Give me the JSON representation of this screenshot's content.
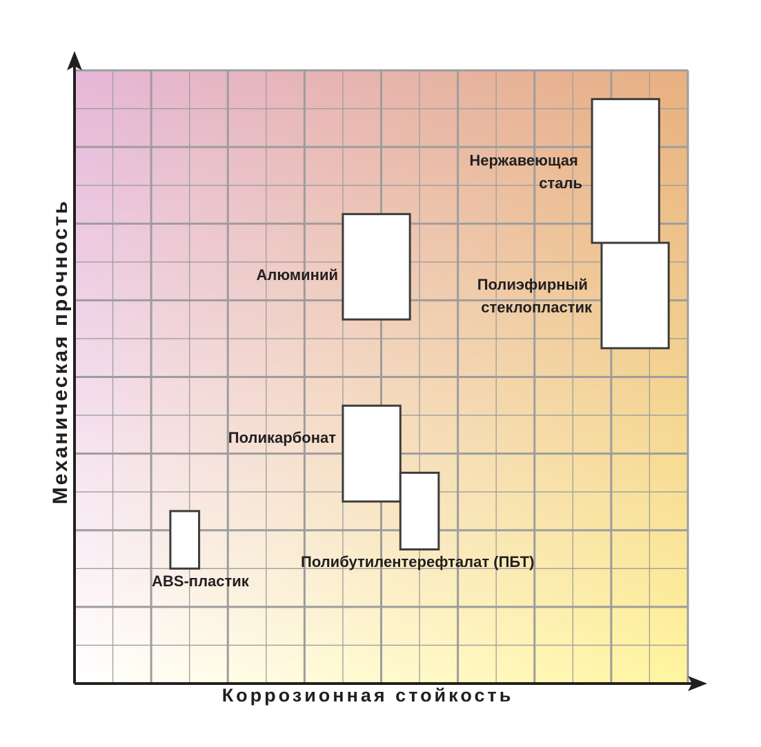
{
  "chart_data": {
    "type": "range-box",
    "xlabel": "Коррозионная стойкость",
    "ylabel": "Механическая прочность",
    "xlim": [
      0,
      16
    ],
    "ylim": [
      0,
      16
    ],
    "grid": true,
    "colors": {
      "bg_top_left": "#e6b7d9",
      "bg_top_right": "#e8b080",
      "bg_bottom_left": "#ffffff",
      "bg_bottom_right": "#fff59e",
      "grid": "#9d9d9d",
      "axis": "#231f20",
      "box_fill": "#ffffff",
      "box_stroke": "#3c3c3c"
    },
    "series": [
      {
        "name": "ABS-пластик",
        "x_range": [
          2.5,
          3.25
        ],
        "y_range": [
          3.0,
          4.5
        ]
      },
      {
        "name": "Поликарбонат",
        "x_range": [
          7.0,
          8.5
        ],
        "y_range": [
          4.75,
          7.25
        ]
      },
      {
        "name": "Полибутилентерефталат (ПБТ)",
        "x_range": [
          8.5,
          9.5
        ],
        "y_range": [
          3.5,
          5.5
        ]
      },
      {
        "name": "Алюминий",
        "x_range": [
          7.0,
          8.75
        ],
        "y_range": [
          9.5,
          12.25
        ]
      },
      {
        "name": "Полиэфирный стеклопластик",
        "x_range": [
          13.75,
          15.5
        ],
        "y_range": [
          8.75,
          11.5
        ]
      },
      {
        "name": "Нержавеющая сталь",
        "x_range": [
          13.5,
          15.25
        ],
        "y_range": [
          11.5,
          15.25
        ]
      }
    ]
  }
}
